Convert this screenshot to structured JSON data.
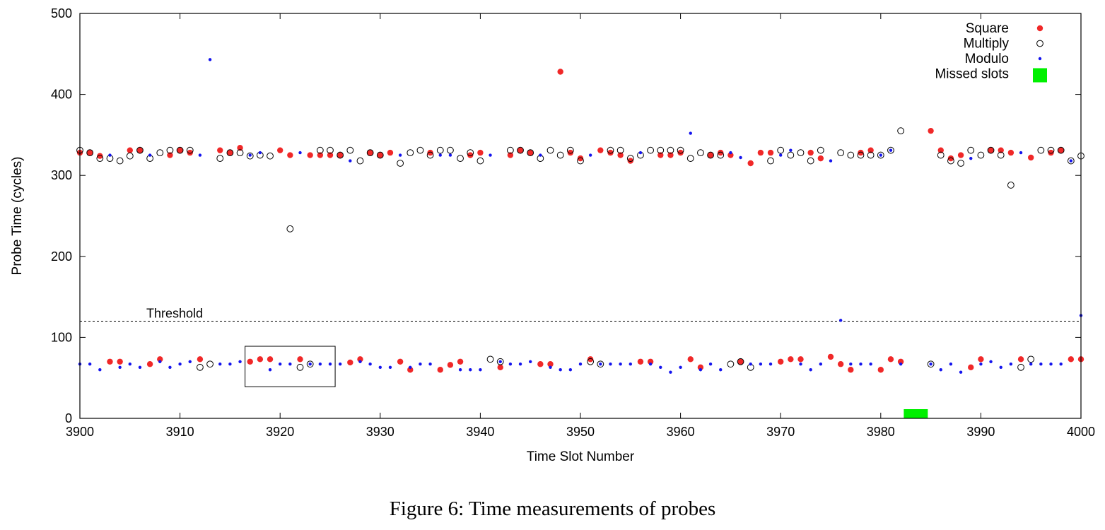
{
  "caption": "Figure 6: Time measurements of probes",
  "chart_data": {
    "type": "scatter",
    "xlabel": "Time Slot Number",
    "ylabel": "Probe Time (cycles)",
    "xlim": [
      3900,
      4000
    ],
    "ylim": [
      0,
      500
    ],
    "xticks": [
      3900,
      3910,
      3920,
      3930,
      3940,
      3950,
      3960,
      3970,
      3980,
      3990,
      4000
    ],
    "yticks": [
      0,
      100,
      200,
      300,
      400,
      500
    ],
    "legend_position": "top-right",
    "threshold": {
      "label": "Threshold",
      "y": 120
    },
    "annotation_box": {
      "x": [
        3916.5,
        3925.5
      ],
      "y": [
        39,
        89
      ]
    },
    "series": [
      {
        "name": "Square",
        "marker": "filled-circle",
        "color": "#f02828",
        "points": [
          [
            3900,
            328
          ],
          [
            3901,
            328
          ],
          [
            3902,
            324
          ],
          [
            3903,
            70
          ],
          [
            3904,
            70
          ],
          [
            3905,
            331
          ],
          [
            3906,
            331
          ],
          [
            3907,
            67
          ],
          [
            3908,
            73
          ],
          [
            3909,
            325
          ],
          [
            3910,
            331
          ],
          [
            3911,
            328
          ],
          [
            3912,
            73
          ],
          [
            3914,
            331
          ],
          [
            3915,
            328
          ],
          [
            3916,
            334
          ],
          [
            3917,
            70
          ],
          [
            3918,
            73
          ],
          [
            3919,
            73
          ],
          [
            3920,
            331
          ],
          [
            3921,
            325
          ],
          [
            3922,
            73
          ],
          [
            3923,
            325
          ],
          [
            3924,
            325
          ],
          [
            3925,
            325
          ],
          [
            3926,
            325
          ],
          [
            3927,
            69
          ],
          [
            3928,
            73
          ],
          [
            3929,
            328
          ],
          [
            3930,
            325
          ],
          [
            3931,
            328
          ],
          [
            3932,
            70
          ],
          [
            3933,
            60
          ],
          [
            3935,
            328
          ],
          [
            3936,
            60
          ],
          [
            3937,
            66
          ],
          [
            3938,
            70
          ],
          [
            3939,
            325
          ],
          [
            3940,
            328
          ],
          [
            3942,
            63
          ],
          [
            3943,
            325
          ],
          [
            3944,
            331
          ],
          [
            3945,
            328
          ],
          [
            3946,
            67
          ],
          [
            3947,
            67
          ],
          [
            3948,
            428
          ],
          [
            3949,
            328
          ],
          [
            3950,
            321
          ],
          [
            3951,
            73
          ],
          [
            3952,
            331
          ],
          [
            3953,
            328
          ],
          [
            3954,
            325
          ],
          [
            3955,
            318
          ],
          [
            3956,
            70
          ],
          [
            3957,
            70
          ],
          [
            3958,
            325
          ],
          [
            3959,
            325
          ],
          [
            3960,
            328
          ],
          [
            3961,
            73
          ],
          [
            3962,
            63
          ],
          [
            3963,
            325
          ],
          [
            3964,
            328
          ],
          [
            3965,
            325
          ],
          [
            3966,
            70
          ],
          [
            3967,
            315
          ],
          [
            3968,
            328
          ],
          [
            3969,
            328
          ],
          [
            3970,
            70
          ],
          [
            3971,
            73
          ],
          [
            3972,
            73
          ],
          [
            3973,
            328
          ],
          [
            3974,
            321
          ],
          [
            3975,
            76
          ],
          [
            3976,
            67
          ],
          [
            3977,
            60
          ],
          [
            3978,
            328
          ],
          [
            3979,
            331
          ],
          [
            3980,
            60
          ],
          [
            3981,
            73
          ],
          [
            3982,
            70
          ],
          [
            3985,
            355
          ],
          [
            3986,
            331
          ],
          [
            3987,
            321
          ],
          [
            3988,
            325
          ],
          [
            3989,
            63
          ],
          [
            3990,
            73
          ],
          [
            3991,
            331
          ],
          [
            3992,
            331
          ],
          [
            3993,
            328
          ],
          [
            3994,
            73
          ],
          [
            3995,
            322
          ],
          [
            3997,
            328
          ],
          [
            3998,
            331
          ],
          [
            3999,
            73
          ],
          [
            4000,
            73
          ]
        ]
      },
      {
        "name": "Multiply",
        "marker": "open-circle",
        "color": "#000000",
        "points": [
          [
            3900,
            331
          ],
          [
            3901,
            328
          ],
          [
            3902,
            321
          ],
          [
            3903,
            321
          ],
          [
            3904,
            318
          ],
          [
            3905,
            324
          ],
          [
            3906,
            331
          ],
          [
            3907,
            321
          ],
          [
            3908,
            328
          ],
          [
            3909,
            331
          ],
          [
            3910,
            331
          ],
          [
            3911,
            331
          ],
          [
            3912,
            63
          ],
          [
            3913,
            67
          ],
          [
            3914,
            321
          ],
          [
            3915,
            328
          ],
          [
            3916,
            328
          ],
          [
            3917,
            324
          ],
          [
            3918,
            325
          ],
          [
            3919,
            324
          ],
          [
            3921,
            234
          ],
          [
            3922,
            63
          ],
          [
            3923,
            67
          ],
          [
            3924,
            331
          ],
          [
            3925,
            331
          ],
          [
            3926,
            325
          ],
          [
            3927,
            331
          ],
          [
            3928,
            318
          ],
          [
            3929,
            328
          ],
          [
            3930,
            325
          ],
          [
            3932,
            315
          ],
          [
            3933,
            328
          ],
          [
            3934,
            331
          ],
          [
            3935,
            325
          ],
          [
            3936,
            331
          ],
          [
            3937,
            331
          ],
          [
            3938,
            321
          ],
          [
            3939,
            328
          ],
          [
            3940,
            318
          ],
          [
            3941,
            73
          ],
          [
            3942,
            70
          ],
          [
            3943,
            331
          ],
          [
            3944,
            331
          ],
          [
            3945,
            328
          ],
          [
            3946,
            321
          ],
          [
            3947,
            331
          ],
          [
            3948,
            325
          ],
          [
            3949,
            331
          ],
          [
            3950,
            318
          ],
          [
            3951,
            70
          ],
          [
            3952,
            67
          ],
          [
            3953,
            331
          ],
          [
            3954,
            331
          ],
          [
            3955,
            321
          ],
          [
            3956,
            325
          ],
          [
            3957,
            331
          ],
          [
            3958,
            331
          ],
          [
            3959,
            331
          ],
          [
            3960,
            331
          ],
          [
            3961,
            321
          ],
          [
            3962,
            328
          ],
          [
            3963,
            325
          ],
          [
            3964,
            325
          ],
          [
            3965,
            67
          ],
          [
            3966,
            70
          ],
          [
            3967,
            63
          ],
          [
            3969,
            318
          ],
          [
            3970,
            331
          ],
          [
            3971,
            325
          ],
          [
            3972,
            328
          ],
          [
            3973,
            318
          ],
          [
            3974,
            331
          ],
          [
            3976,
            328
          ],
          [
            3977,
            325
          ],
          [
            3978,
            325
          ],
          [
            3979,
            325
          ],
          [
            3980,
            325
          ],
          [
            3981,
            331
          ],
          [
            3982,
            355
          ],
          [
            3985,
            67
          ],
          [
            3986,
            325
          ],
          [
            3987,
            318
          ],
          [
            3988,
            315
          ],
          [
            3989,
            331
          ],
          [
            3990,
            325
          ],
          [
            3991,
            331
          ],
          [
            3992,
            325
          ],
          [
            3993,
            288
          ],
          [
            3994,
            63
          ],
          [
            3995,
            73
          ],
          [
            3996,
            331
          ],
          [
            3997,
            331
          ],
          [
            3998,
            331
          ],
          [
            3999,
            318
          ],
          [
            4000,
            324
          ]
        ]
      },
      {
        "name": "Modulo",
        "marker": "dot",
        "color": "#1414ee",
        "points": [
          [
            3900,
            67
          ],
          [
            3901,
            67
          ],
          [
            3902,
            60
          ],
          [
            3903,
            325
          ],
          [
            3904,
            63
          ],
          [
            3905,
            67
          ],
          [
            3906,
            63
          ],
          [
            3907,
            325
          ],
          [
            3908,
            70
          ],
          [
            3909,
            63
          ],
          [
            3910,
            67
          ],
          [
            3911,
            70
          ],
          [
            3912,
            325
          ],
          [
            3913,
            443
          ],
          [
            3914,
            67
          ],
          [
            3915,
            67
          ],
          [
            3916,
            70
          ],
          [
            3917,
            325
          ],
          [
            3918,
            328
          ],
          [
            3919,
            60
          ],
          [
            3920,
            67
          ],
          [
            3921,
            67
          ],
          [
            3922,
            328
          ],
          [
            3923,
            67
          ],
          [
            3924,
            67
          ],
          [
            3925,
            67
          ],
          [
            3926,
            67
          ],
          [
            3927,
            318
          ],
          [
            3928,
            70
          ],
          [
            3929,
            67
          ],
          [
            3930,
            63
          ],
          [
            3931,
            63
          ],
          [
            3932,
            325
          ],
          [
            3933,
            63
          ],
          [
            3934,
            67
          ],
          [
            3935,
            67
          ],
          [
            3936,
            325
          ],
          [
            3937,
            325
          ],
          [
            3938,
            60
          ],
          [
            3939,
            60
          ],
          [
            3940,
            60
          ],
          [
            3941,
            325
          ],
          [
            3942,
            70
          ],
          [
            3943,
            67
          ],
          [
            3944,
            67
          ],
          [
            3945,
            70
          ],
          [
            3946,
            325
          ],
          [
            3947,
            63
          ],
          [
            3948,
            60
          ],
          [
            3949,
            60
          ],
          [
            3950,
            67
          ],
          [
            3951,
            325
          ],
          [
            3952,
            67
          ],
          [
            3953,
            67
          ],
          [
            3954,
            67
          ],
          [
            3955,
            67
          ],
          [
            3956,
            328
          ],
          [
            3957,
            67
          ],
          [
            3958,
            63
          ],
          [
            3959,
            57
          ],
          [
            3960,
            63
          ],
          [
            3961,
            352
          ],
          [
            3962,
            60
          ],
          [
            3963,
            67
          ],
          [
            3964,
            60
          ],
          [
            3965,
            328
          ],
          [
            3966,
            322
          ],
          [
            3967,
            67
          ],
          [
            3968,
            67
          ],
          [
            3969,
            67
          ],
          [
            3970,
            325
          ],
          [
            3971,
            331
          ],
          [
            3972,
            67
          ],
          [
            3973,
            60
          ],
          [
            3974,
            67
          ],
          [
            3975,
            318
          ],
          [
            3976,
            121
          ],
          [
            3977,
            67
          ],
          [
            3978,
            67
          ],
          [
            3979,
            67
          ],
          [
            3980,
            325
          ],
          [
            3981,
            331
          ],
          [
            3982,
            67
          ],
          [
            3985,
            67
          ],
          [
            3986,
            60
          ],
          [
            3987,
            67
          ],
          [
            3988,
            57
          ],
          [
            3989,
            321
          ],
          [
            3990,
            67
          ],
          [
            3991,
            70
          ],
          [
            3992,
            63
          ],
          [
            3993,
            67
          ],
          [
            3994,
            328
          ],
          [
            3995,
            67
          ],
          [
            3996,
            67
          ],
          [
            3997,
            67
          ],
          [
            3998,
            67
          ],
          [
            3999,
            318
          ],
          [
            4000,
            127
          ]
        ]
      },
      {
        "name": "Missed slots",
        "marker": "square",
        "color": "#00f000",
        "points": [
          [
            3983.5,
            0
          ]
        ]
      }
    ]
  }
}
